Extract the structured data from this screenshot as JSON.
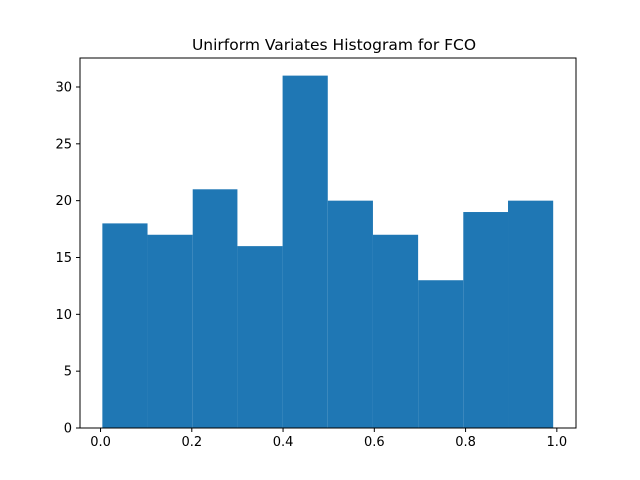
{
  "chart_data": {
    "type": "bar",
    "title": "Unirform Variates Histogram for FCO",
    "xlabel": "",
    "ylabel": "",
    "bins": [
      {
        "x0": 0.004,
        "x1": 0.103,
        "count": 18
      },
      {
        "x0": 0.103,
        "x1": 0.202,
        "count": 17
      },
      {
        "x0": 0.202,
        "x1": 0.3,
        "count": 21
      },
      {
        "x0": 0.3,
        "x1": 0.399,
        "count": 16
      },
      {
        "x0": 0.399,
        "x1": 0.498,
        "count": 31
      },
      {
        "x0": 0.498,
        "x1": 0.597,
        "count": 20
      },
      {
        "x0": 0.597,
        "x1": 0.696,
        "count": 17
      },
      {
        "x0": 0.696,
        "x1": 0.795,
        "count": 13
      },
      {
        "x0": 0.795,
        "x1": 0.893,
        "count": 19
      },
      {
        "x0": 0.893,
        "x1": 0.992,
        "count": 20
      }
    ],
    "xlim": [
      -0.045,
      1.042
    ],
    "ylim": [
      0,
      32.55
    ],
    "xticks": [
      0.0,
      0.2,
      0.4,
      0.6,
      0.8,
      1.0
    ],
    "xtick_labels": [
      "0.0",
      "0.2",
      "0.4",
      "0.6",
      "0.8",
      "1.0"
    ],
    "yticks": [
      0,
      5,
      10,
      15,
      20,
      25,
      30
    ],
    "ytick_labels": [
      "0",
      "5",
      "10",
      "15",
      "20",
      "25",
      "30"
    ],
    "grid": false,
    "colors": {
      "bar": "#1f77b4",
      "axes": "#000000",
      "background": "#ffffff"
    }
  }
}
